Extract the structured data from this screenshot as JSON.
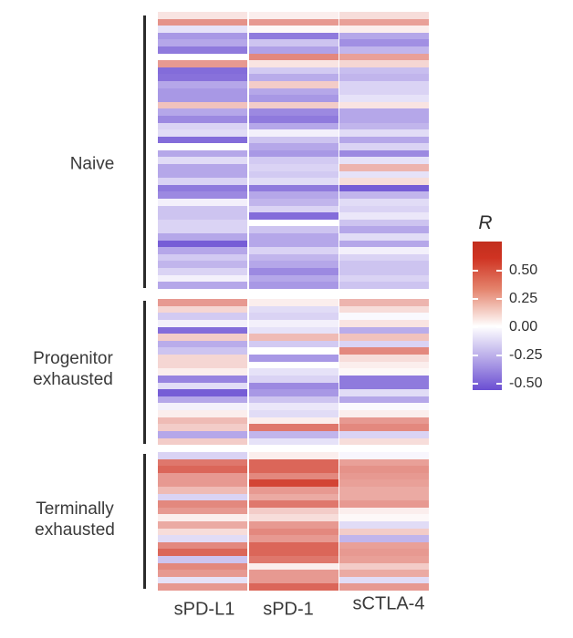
{
  "figure": {
    "row_groups": [
      {
        "lines": [
          "Naive"
        ]
      },
      {
        "lines": [
          "Progenitor",
          "exhausted"
        ]
      },
      {
        "lines": [
          "Terminally",
          "exhausted"
        ]
      }
    ]
  },
  "chart_data": {
    "type": "heatmap",
    "title": "",
    "columns": [
      "sPD-L1",
      "sPD-1",
      "sCTLA-4"
    ],
    "legend": {
      "title": "R",
      "position": "right",
      "tick_labels": [
        "0.50",
        "0.25",
        "0.00",
        "-0.25",
        "-0.50"
      ],
      "tick_values": [
        0.5,
        0.25,
        0.0,
        -0.25,
        -0.5
      ]
    },
    "colormap": {
      "type": "diverging",
      "min": -0.6,
      "mid": 0.0,
      "max": 0.6,
      "min_color": "#6a4ed2",
      "mid_color": "#ffffff",
      "max_color": "#cf3322"
    },
    "value_name": "R",
    "row_groups": [
      {
        "name": "Naive",
        "rows": [
          [
            0.08,
            0.05,
            0.1
          ],
          [
            0.32,
            0.3,
            0.28
          ],
          [
            -0.1,
            0.02,
            0.05
          ],
          [
            -0.35,
            -0.45,
            -0.3
          ],
          [
            -0.3,
            -0.2,
            -0.38
          ],
          [
            -0.45,
            -0.32,
            -0.25
          ],
          [
            0.0,
            0.35,
            0.28
          ],
          [
            0.3,
            0.08,
            0.12
          ],
          [
            -0.5,
            -0.18,
            -0.22
          ],
          [
            -0.48,
            -0.28,
            -0.25
          ],
          [
            -0.3,
            0.15,
            -0.15
          ],
          [
            -0.35,
            -0.3,
            -0.15
          ],
          [
            -0.35,
            -0.35,
            -0.1
          ],
          [
            0.18,
            0.15,
            0.08
          ],
          [
            -0.3,
            -0.4,
            -0.3
          ],
          [
            -0.4,
            -0.45,
            -0.3
          ],
          [
            -0.15,
            -0.3,
            -0.25
          ],
          [
            -0.12,
            -0.05,
            -0.12
          ],
          [
            -0.5,
            -0.2,
            -0.3
          ],
          [
            0.0,
            -0.3,
            -0.15
          ],
          [
            -0.3,
            -0.35,
            -0.4
          ],
          [
            -0.12,
            -0.18,
            -0.1
          ],
          [
            -0.3,
            -0.15,
            0.22
          ],
          [
            -0.3,
            -0.18,
            -0.1
          ],
          [
            -0.15,
            -0.12,
            0.1
          ],
          [
            -0.45,
            -0.45,
            -0.55
          ],
          [
            -0.4,
            -0.3,
            -0.25
          ],
          [
            -0.05,
            -0.25,
            -0.12
          ],
          [
            -0.2,
            -0.15,
            -0.15
          ],
          [
            -0.2,
            -0.5,
            -0.08
          ],
          [
            -0.15,
            0.0,
            -0.2
          ],
          [
            -0.15,
            -0.2,
            -0.3
          ],
          [
            -0.3,
            -0.3,
            -0.12
          ],
          [
            -0.55,
            -0.3,
            -0.3
          ],
          [
            -0.3,
            -0.15,
            -0.05
          ],
          [
            -0.18,
            -0.25,
            -0.15
          ],
          [
            -0.25,
            -0.3,
            -0.2
          ],
          [
            -0.15,
            -0.4,
            -0.2
          ],
          [
            -0.05,
            -0.3,
            -0.15
          ],
          [
            -0.3,
            -0.35,
            -0.2
          ]
        ]
      },
      {
        "name": "Progenitor exhausted",
        "rows": [
          [
            0.3,
            0.05,
            0.22
          ],
          [
            0.12,
            -0.12,
            0.1
          ],
          [
            -0.18,
            -0.15,
            -0.02
          ],
          [
            -0.05,
            -0.05,
            0.08
          ],
          [
            -0.5,
            -0.1,
            -0.28
          ],
          [
            0.15,
            0.2,
            0.18
          ],
          [
            -0.28,
            -0.18,
            -0.15
          ],
          [
            -0.2,
            0.0,
            0.35
          ],
          [
            0.12,
            -0.35,
            0.1
          ],
          [
            0.12,
            0.0,
            0.05
          ],
          [
            0.05,
            -0.1,
            0.02
          ],
          [
            -0.42,
            -0.15,
            -0.45
          ],
          [
            -0.12,
            -0.4,
            -0.45
          ],
          [
            -0.55,
            -0.35,
            -0.12
          ],
          [
            -0.3,
            -0.2,
            -0.3
          ],
          [
            -0.05,
            -0.08,
            -0.02
          ],
          [
            0.05,
            -0.12,
            0.05
          ],
          [
            0.2,
            0.05,
            0.3
          ],
          [
            0.15,
            0.4,
            0.35
          ],
          [
            -0.3,
            -0.25,
            -0.15
          ],
          [
            0.15,
            -0.1,
            0.1
          ]
        ]
      },
      {
        "name": "Terminally exhausted",
        "rows": [
          [
            -0.15,
            0.05,
            -0.03
          ],
          [
            0.4,
            0.45,
            0.28
          ],
          [
            0.45,
            0.45,
            0.32
          ],
          [
            0.3,
            0.35,
            0.3
          ],
          [
            0.3,
            0.55,
            0.28
          ],
          [
            0.2,
            0.3,
            0.25
          ],
          [
            -0.15,
            0.25,
            0.25
          ],
          [
            0.35,
            0.4,
            0.3
          ],
          [
            0.3,
            0.15,
            0.05
          ],
          [
            0.05,
            0.1,
            0.02
          ],
          [
            0.25,
            0.3,
            -0.12
          ],
          [
            0.1,
            0.35,
            0.15
          ],
          [
            -0.12,
            0.3,
            -0.25
          ],
          [
            0.35,
            0.45,
            0.28
          ],
          [
            0.45,
            0.45,
            0.3
          ],
          [
            -0.2,
            0.4,
            0.28
          ],
          [
            0.35,
            0.05,
            0.15
          ],
          [
            0.3,
            0.3,
            0.25
          ],
          [
            -0.1,
            0.3,
            -0.12
          ],
          [
            0.3,
            0.45,
            0.3
          ]
        ]
      }
    ]
  }
}
